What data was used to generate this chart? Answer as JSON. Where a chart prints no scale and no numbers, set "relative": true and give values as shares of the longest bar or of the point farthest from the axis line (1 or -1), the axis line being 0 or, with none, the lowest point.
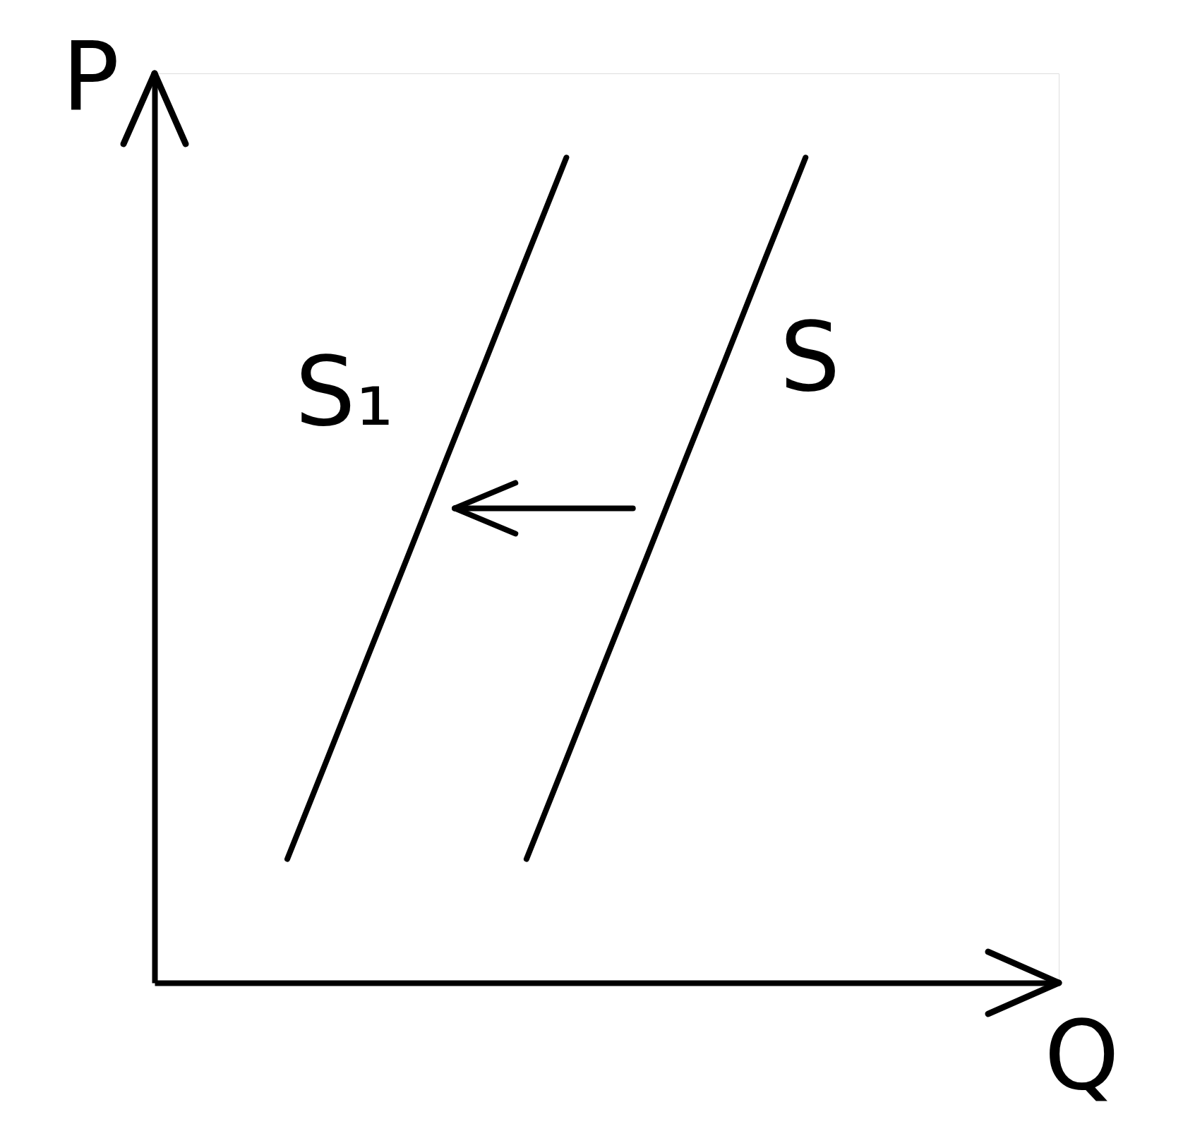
{
  "chart_data": {
    "type": "line",
    "relative": true,
    "xlabel": "Q",
    "ylabel": "P",
    "categories": [
      null,
      null,
      null,
      null,
      null,
      null,
      null,
      null,
      null,
      null,
      null,
      null,
      null,
      null,
      null,
      null,
      null
    ],
    "series": [
      {
        "name": "S",
        "color": "#000000",
        "values": [
          null,
          null,
          null,
          null,
          null,
          null,
          null,
          null,
          null,
          0.15,
          0.271,
          0.393,
          0.514,
          0.636,
          0.757,
          0.879,
          1
        ]
      },
      {
        "name": "S₁",
        "color": "#000000",
        "values": [
          null,
          null,
          null,
          0.15,
          0.271,
          0.393,
          0.514,
          0.636,
          0.757,
          0.879,
          1,
          null,
          null,
          null,
          null,
          null,
          null
        ]
      }
    ]
  }
}
